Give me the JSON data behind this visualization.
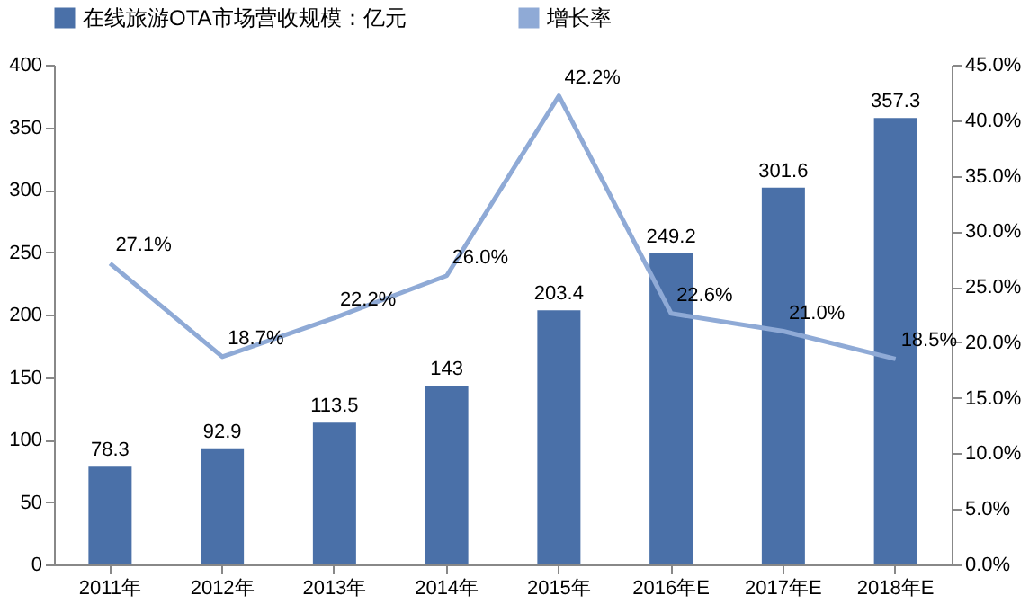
{
  "chart_data": {
    "type": "bar",
    "categories": [
      "2011年",
      "2012年",
      "2013年",
      "2014年",
      "2015年",
      "2016年E",
      "2017年E",
      "2018年E"
    ],
    "series": [
      {
        "name": "在线旅游OTA市场营收规模：亿元",
        "color": "#4a70a8",
        "values": [
          78.3,
          92.9,
          113.5,
          143,
          203.4,
          249.2,
          301.6,
          357.3
        ],
        "value_labels": [
          "78.3",
          "92.9",
          "113.5",
          "143",
          "203.4",
          "249.2",
          "301.6",
          "357.3"
        ]
      },
      {
        "name": "增长率",
        "type": "line",
        "axis": "y2",
        "color": "#8faad6",
        "values": [
          27.1,
          18.7,
          22.2,
          26.0,
          42.2,
          22.6,
          21.0,
          18.5
        ],
        "value_labels": [
          "27.1%",
          "18.7%",
          "22.2%",
          "26.0%",
          "42.2%",
          "22.6%",
          "21.0%",
          "18.5%"
        ]
      }
    ],
    "ylim": [
      0,
      400
    ],
    "yticks": [
      0,
      50,
      100,
      150,
      200,
      250,
      300,
      350,
      400
    ],
    "y2lim": [
      0,
      45
    ],
    "y2ticks": [
      {
        "value": 0,
        "label": "0.0%"
      },
      {
        "value": 5,
        "label": "5.0%"
      },
      {
        "value": 10,
        "label": "10.0%"
      },
      {
        "value": 15,
        "label": "15.0%"
      },
      {
        "value": 20,
        "label": "20.0%"
      },
      {
        "value": 25,
        "label": "25.0%"
      },
      {
        "value": 30,
        "label": "30.0%"
      },
      {
        "value": 35,
        "label": "35.0%"
      },
      {
        "value": 40,
        "label": "40.0%"
      },
      {
        "value": 45,
        "label": "45.0%"
      }
    ],
    "grid": false,
    "legend": "top",
    "marker": "none",
    "line_style": "solid"
  }
}
